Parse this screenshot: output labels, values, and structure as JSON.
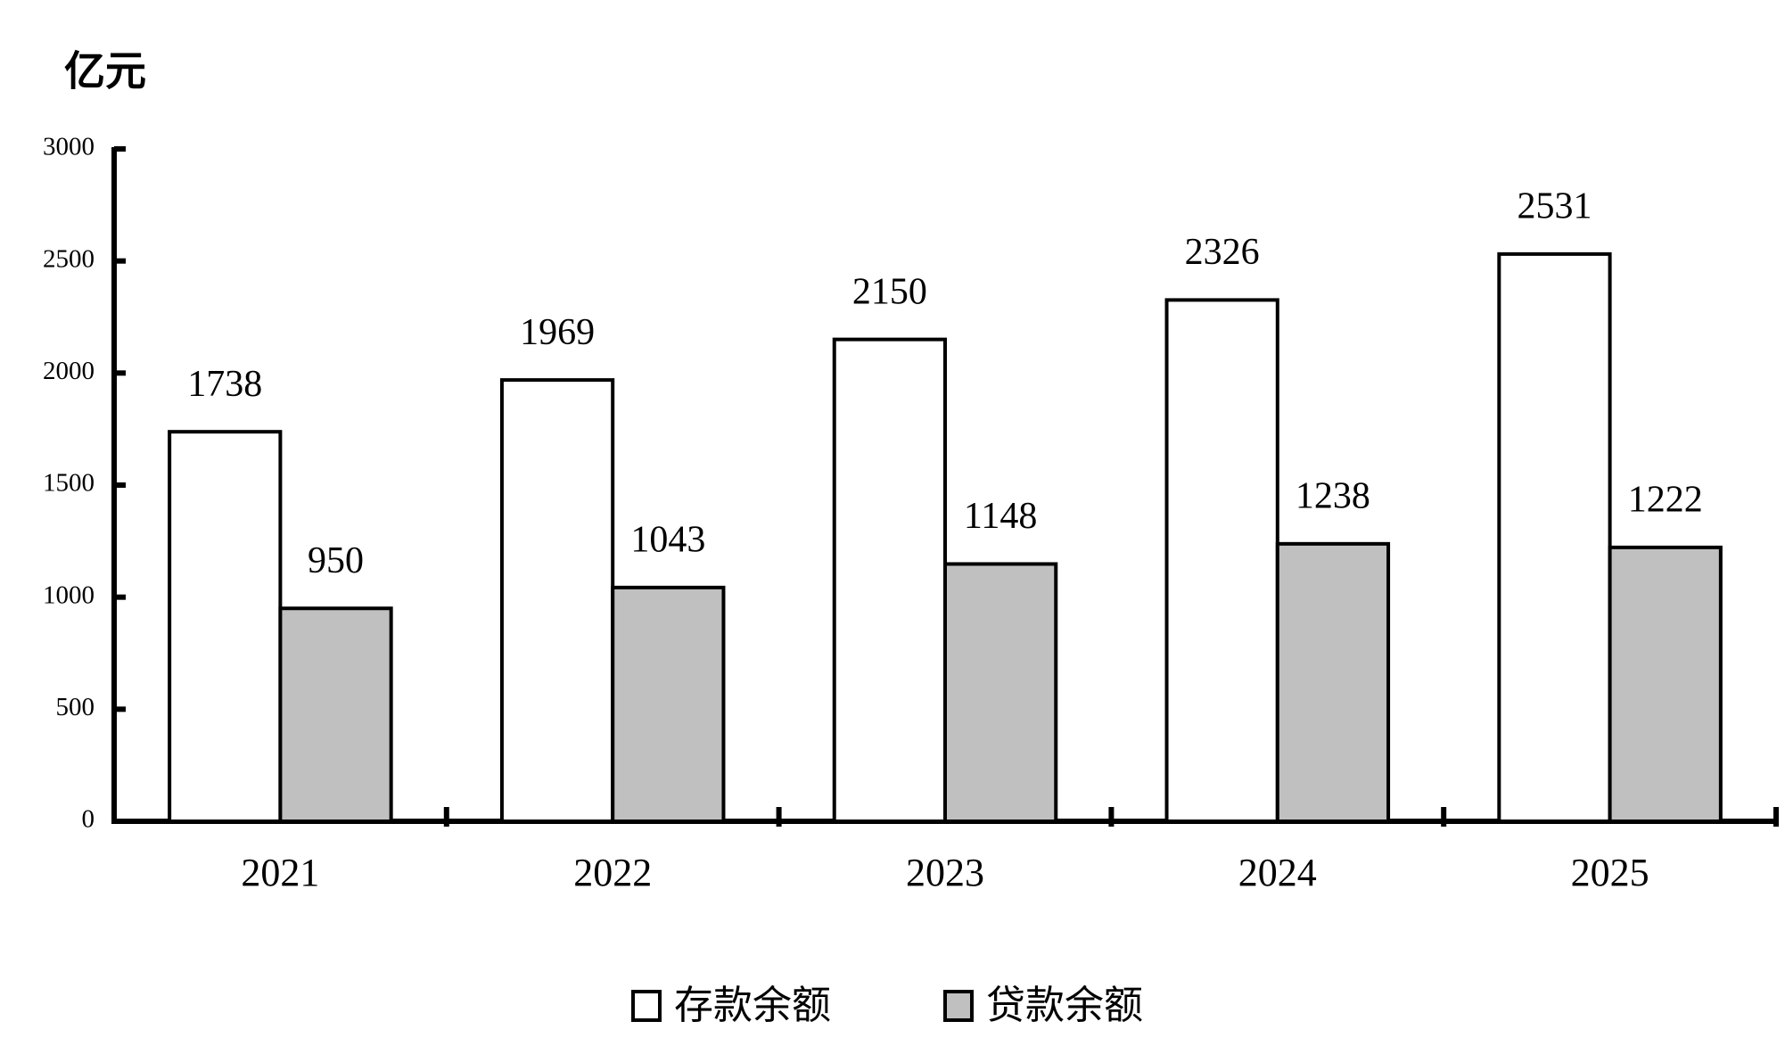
{
  "chart_data": {
    "type": "bar",
    "y_label": "亿元",
    "categories": [
      "2021",
      "2022",
      "2023",
      "2024",
      "2025"
    ],
    "series": [
      {
        "name": "存款余额",
        "color": "#ffffff",
        "values": [
          1738,
          1969,
          2150,
          2326,
          2531
        ]
      },
      {
        "name": "贷款余额",
        "color": "#c0c0c0",
        "values": [
          950,
          1043,
          1148,
          1238,
          1222
        ]
      }
    ],
    "ylim": [
      0,
      3000
    ],
    "yticks": [
      0,
      500,
      1000,
      1500,
      2000,
      2500,
      3000
    ],
    "grid": false,
    "legend": "bottom"
  }
}
